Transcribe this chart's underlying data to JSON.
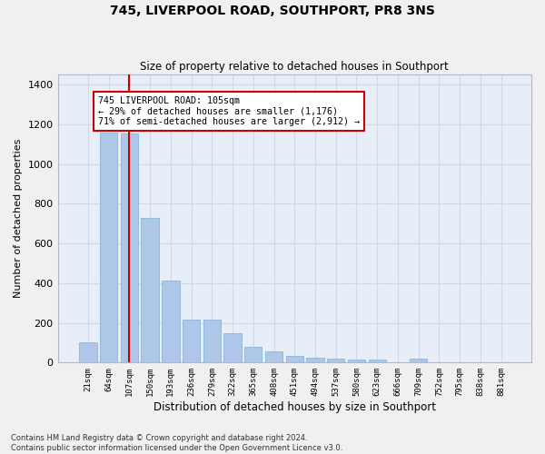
{
  "title": "745, LIVERPOOL ROAD, SOUTHPORT, PR8 3NS",
  "subtitle": "Size of property relative to detached houses in Southport",
  "xlabel": "Distribution of detached houses by size in Southport",
  "ylabel": "Number of detached properties",
  "categories": [
    "21sqm",
    "64sqm",
    "107sqm",
    "150sqm",
    "193sqm",
    "236sqm",
    "279sqm",
    "322sqm",
    "365sqm",
    "408sqm",
    "451sqm",
    "494sqm",
    "537sqm",
    "580sqm",
    "623sqm",
    "666sqm",
    "709sqm",
    "752sqm",
    "795sqm",
    "838sqm",
    "881sqm"
  ],
  "values": [
    103,
    1160,
    1155,
    730,
    415,
    215,
    215,
    150,
    80,
    55,
    35,
    25,
    20,
    15,
    13,
    0,
    20,
    0,
    0,
    0,
    0
  ],
  "bar_color": "#aec6e8",
  "bar_edge_color": "#7bafd4",
  "vline_color": "#cc0000",
  "vline_x": 2.0,
  "annotation_text": "745 LIVERPOOL ROAD: 105sqm\n← 29% of detached houses are smaller (1,176)\n71% of semi-detached houses are larger (2,912) →",
  "annotation_box_color": "#ffffff",
  "annotation_box_edge": "#cc0000",
  "ylim": [
    0,
    1450
  ],
  "yticks": [
    0,
    200,
    400,
    600,
    800,
    1000,
    1200,
    1400
  ],
  "grid_color": "#d0d8e8",
  "bg_color": "#e8eef8",
  "fig_bg_color": "#f0f0f0",
  "footer_line1": "Contains HM Land Registry data © Crown copyright and database right 2024.",
  "footer_line2": "Contains public sector information licensed under the Open Government Licence v3.0."
}
